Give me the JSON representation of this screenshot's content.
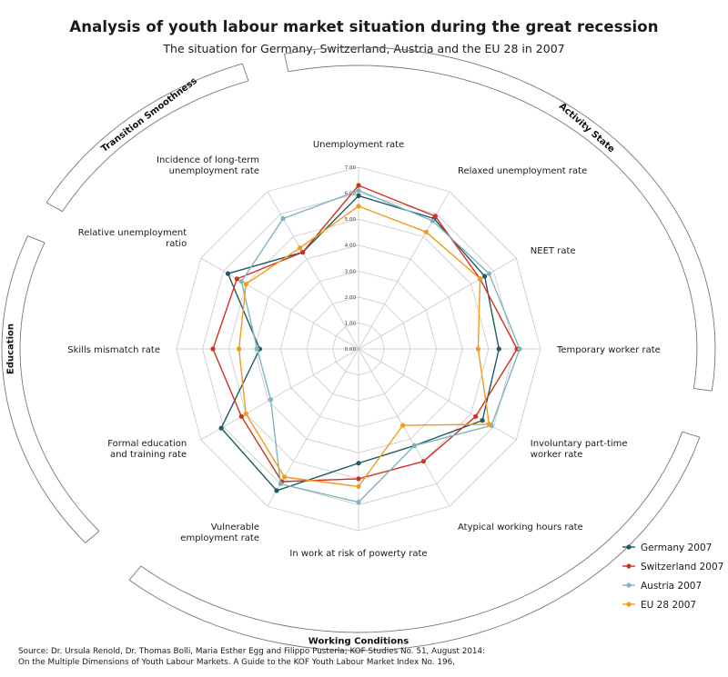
{
  "header": {
    "title": "Analysis of youth labour market situation during the great recession",
    "subtitle": "The situation for Germany, Switzerland, Austria and the EU 28 in 2007"
  },
  "source": {
    "line1": "Source: Dr. Ursula Renold, Dr. Thomas Bolli, Maria Esther Egg and Filippo Pusterla; KOF Studies No. 51, August 2014:",
    "line2": "On the Multiple Dimensions of Youth Labour Markets. A Guide to the KOF Youth Labour Market Index No. 196,"
  },
  "groups": [
    {
      "name": "Activity State"
    },
    {
      "name": "Working Conditions"
    },
    {
      "name": "Education"
    },
    {
      "name": "Transition Smoothness"
    }
  ],
  "chart_data": {
    "type": "radar",
    "title": "Analysis of youth labour market situation during the great recession",
    "subtitle": "The situation for Germany, Switzerland, Austria and the EU 28 in 2007",
    "axes": [
      {
        "label": [
          "Unemployment rate"
        ]
      },
      {
        "label": [
          "Relaxed unemployment rate"
        ]
      },
      {
        "label": [
          "NEET rate"
        ]
      },
      {
        "label": [
          "Temporary worker rate"
        ]
      },
      {
        "label": [
          "Involuntary part-time",
          "worker rate"
        ]
      },
      {
        "label": [
          "Atypical working hours rate"
        ]
      },
      {
        "label": [
          "In work at risk of powerty rate"
        ]
      },
      {
        "label": [
          "Vulnerable",
          "employment rate"
        ]
      },
      {
        "label": [
          "Formal education",
          "and training rate"
        ]
      },
      {
        "label": [
          "Skills mismatch rate"
        ]
      },
      {
        "label": [
          "Relative unemployment",
          "ratio"
        ]
      },
      {
        "label": [
          "Incidence of long-term",
          "unemployment rate"
        ]
      }
    ],
    "range": [
      0,
      7
    ],
    "ticks": [
      "0.00",
      "1.00",
      "2.00",
      "3.00",
      "4.00",
      "5.00",
      "6.00",
      "7.00"
    ],
    "legend_position": "bottom-right",
    "series": [
      {
        "name": "Germany 2007",
        "color": "#1f5a66",
        "values": [
          5.9,
          5.8,
          5.6,
          5.4,
          5.5,
          4.3,
          4.4,
          6.3,
          6.1,
          3.8,
          5.8,
          4.3
        ]
      },
      {
        "name": "Switzerland 2007",
        "color": "#d2311c",
        "values": [
          6.3,
          5.9,
          5.4,
          6.1,
          5.2,
          5.0,
          5.0,
          5.9,
          5.2,
          5.6,
          5.4,
          4.3
        ]
      },
      {
        "name": "Austria 2007",
        "color": "#80b3c0",
        "values": [
          6.1,
          5.7,
          5.8,
          6.2,
          5.9,
          4.3,
          5.9,
          6.0,
          3.9,
          3.9,
          5.2,
          5.8
        ]
      },
      {
        "name": "EU 28 2007",
        "color": "#f09b1c",
        "values": [
          5.5,
          5.2,
          5.4,
          4.6,
          5.8,
          3.4,
          5.3,
          5.7,
          5.0,
          4.6,
          5.0,
          4.5
        ]
      }
    ]
  }
}
